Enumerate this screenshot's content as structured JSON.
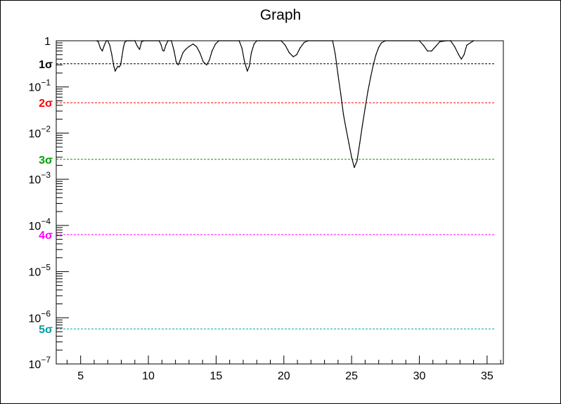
{
  "chart_data": {
    "type": "line",
    "title": "Graph",
    "xlabel": "",
    "ylabel": "",
    "xlim": [
      3.2,
      36.2
    ],
    "ylim": [
      1e-07,
      1
    ],
    "yscale": "log",
    "grid": false,
    "x_ticks": [
      {
        "value": 5,
        "label": "5"
      },
      {
        "value": 10,
        "label": "10"
      },
      {
        "value": 15,
        "label": "15"
      },
      {
        "value": 20,
        "label": "20"
      },
      {
        "value": 25,
        "label": "25"
      },
      {
        "value": 30,
        "label": "30"
      },
      {
        "value": 35,
        "label": "35"
      }
    ],
    "y_ticks": [
      {
        "value": 1,
        "base": "1",
        "exp": ""
      },
      {
        "value": 0.1,
        "base": "10",
        "exp": "−1"
      },
      {
        "value": 0.01,
        "base": "10",
        "exp": "−2"
      },
      {
        "value": 0.001,
        "base": "10",
        "exp": "−3"
      },
      {
        "value": 0.0001,
        "base": "10",
        "exp": "−4"
      },
      {
        "value": 1e-05,
        "base": "10",
        "exp": "−5"
      },
      {
        "value": 1e-06,
        "base": "10",
        "exp": "−6"
      },
      {
        "value": 1e-07,
        "base": "10",
        "exp": "−7"
      }
    ],
    "series": [
      {
        "color": "#000000",
        "x": [
          6.2,
          6.3,
          6.45,
          6.6,
          6.75,
          6.9,
          7.0,
          7.15,
          7.3,
          7.45,
          7.55,
          7.65,
          7.75,
          7.85,
          7.95,
          8.05,
          8.15,
          8.25,
          8.4,
          8.55,
          8.7,
          9.0,
          9.2,
          9.35,
          9.5,
          9.65,
          10.8,
          10.95,
          11.05,
          11.15,
          11.3,
          11.45,
          11.7,
          11.9,
          12.05,
          12.2,
          12.35,
          12.55,
          12.75,
          13.0,
          13.3,
          13.55,
          13.8,
          14.05,
          14.3,
          14.5,
          14.7,
          14.95,
          15.2,
          16.7,
          16.9,
          17.1,
          17.3,
          17.45,
          17.6,
          17.8,
          18.0,
          18.2,
          19.8,
          20.1,
          20.4,
          20.7,
          20.95,
          21.2,
          21.5,
          21.8,
          23.6,
          23.8,
          24.0,
          24.2,
          24.4,
          24.6,
          24.8,
          25.0,
          25.2,
          25.4,
          25.6,
          25.8,
          26.0,
          26.2,
          26.4,
          26.6,
          26.8,
          27.0,
          27.2,
          27.5,
          30.0,
          30.3,
          30.6,
          30.9,
          31.2,
          31.5,
          32.0,
          32.3,
          32.6,
          32.9,
          33.1,
          33.3,
          33.5,
          34.0
        ],
        "y": [
          1.0,
          0.95,
          0.7,
          0.6,
          0.8,
          1.0,
          1.0,
          0.8,
          0.5,
          0.28,
          0.22,
          0.25,
          0.28,
          0.27,
          0.3,
          0.45,
          0.7,
          0.92,
          1.0,
          1.0,
          1.0,
          1.0,
          0.75,
          0.65,
          0.95,
          1.0,
          1.0,
          0.8,
          0.62,
          0.6,
          0.82,
          1.0,
          1.0,
          0.6,
          0.35,
          0.3,
          0.38,
          0.55,
          0.65,
          0.75,
          0.85,
          0.75,
          0.55,
          0.35,
          0.3,
          0.38,
          0.6,
          0.85,
          1.0,
          1.0,
          0.7,
          0.35,
          0.22,
          0.28,
          0.55,
          0.85,
          1.0,
          1.0,
          1.0,
          0.8,
          0.55,
          0.45,
          0.5,
          0.7,
          0.92,
          1.0,
          1.0,
          0.5,
          0.18,
          0.07,
          0.025,
          0.012,
          0.006,
          0.003,
          0.0018,
          0.0025,
          0.006,
          0.015,
          0.035,
          0.08,
          0.16,
          0.3,
          0.5,
          0.72,
          0.9,
          1.0,
          1.0,
          0.8,
          0.6,
          0.6,
          0.75,
          0.95,
          1.0,
          1.0,
          0.75,
          0.5,
          0.4,
          0.5,
          0.8,
          1.0
        ]
      }
    ],
    "sigma_lines": [
      {
        "label": "1σ",
        "value": 0.3173,
        "color": "#000000"
      },
      {
        "label": "2σ",
        "value": 0.0455,
        "color": "#ff0000"
      },
      {
        "label": "3σ",
        "value": 0.0027,
        "color": "#00a000"
      },
      {
        "label": "4σ",
        "value": 6.33e-05,
        "color": "#ff00ff"
      },
      {
        "label": "5σ",
        "value": 5.73e-07,
        "color": "#00a0a0"
      }
    ]
  }
}
